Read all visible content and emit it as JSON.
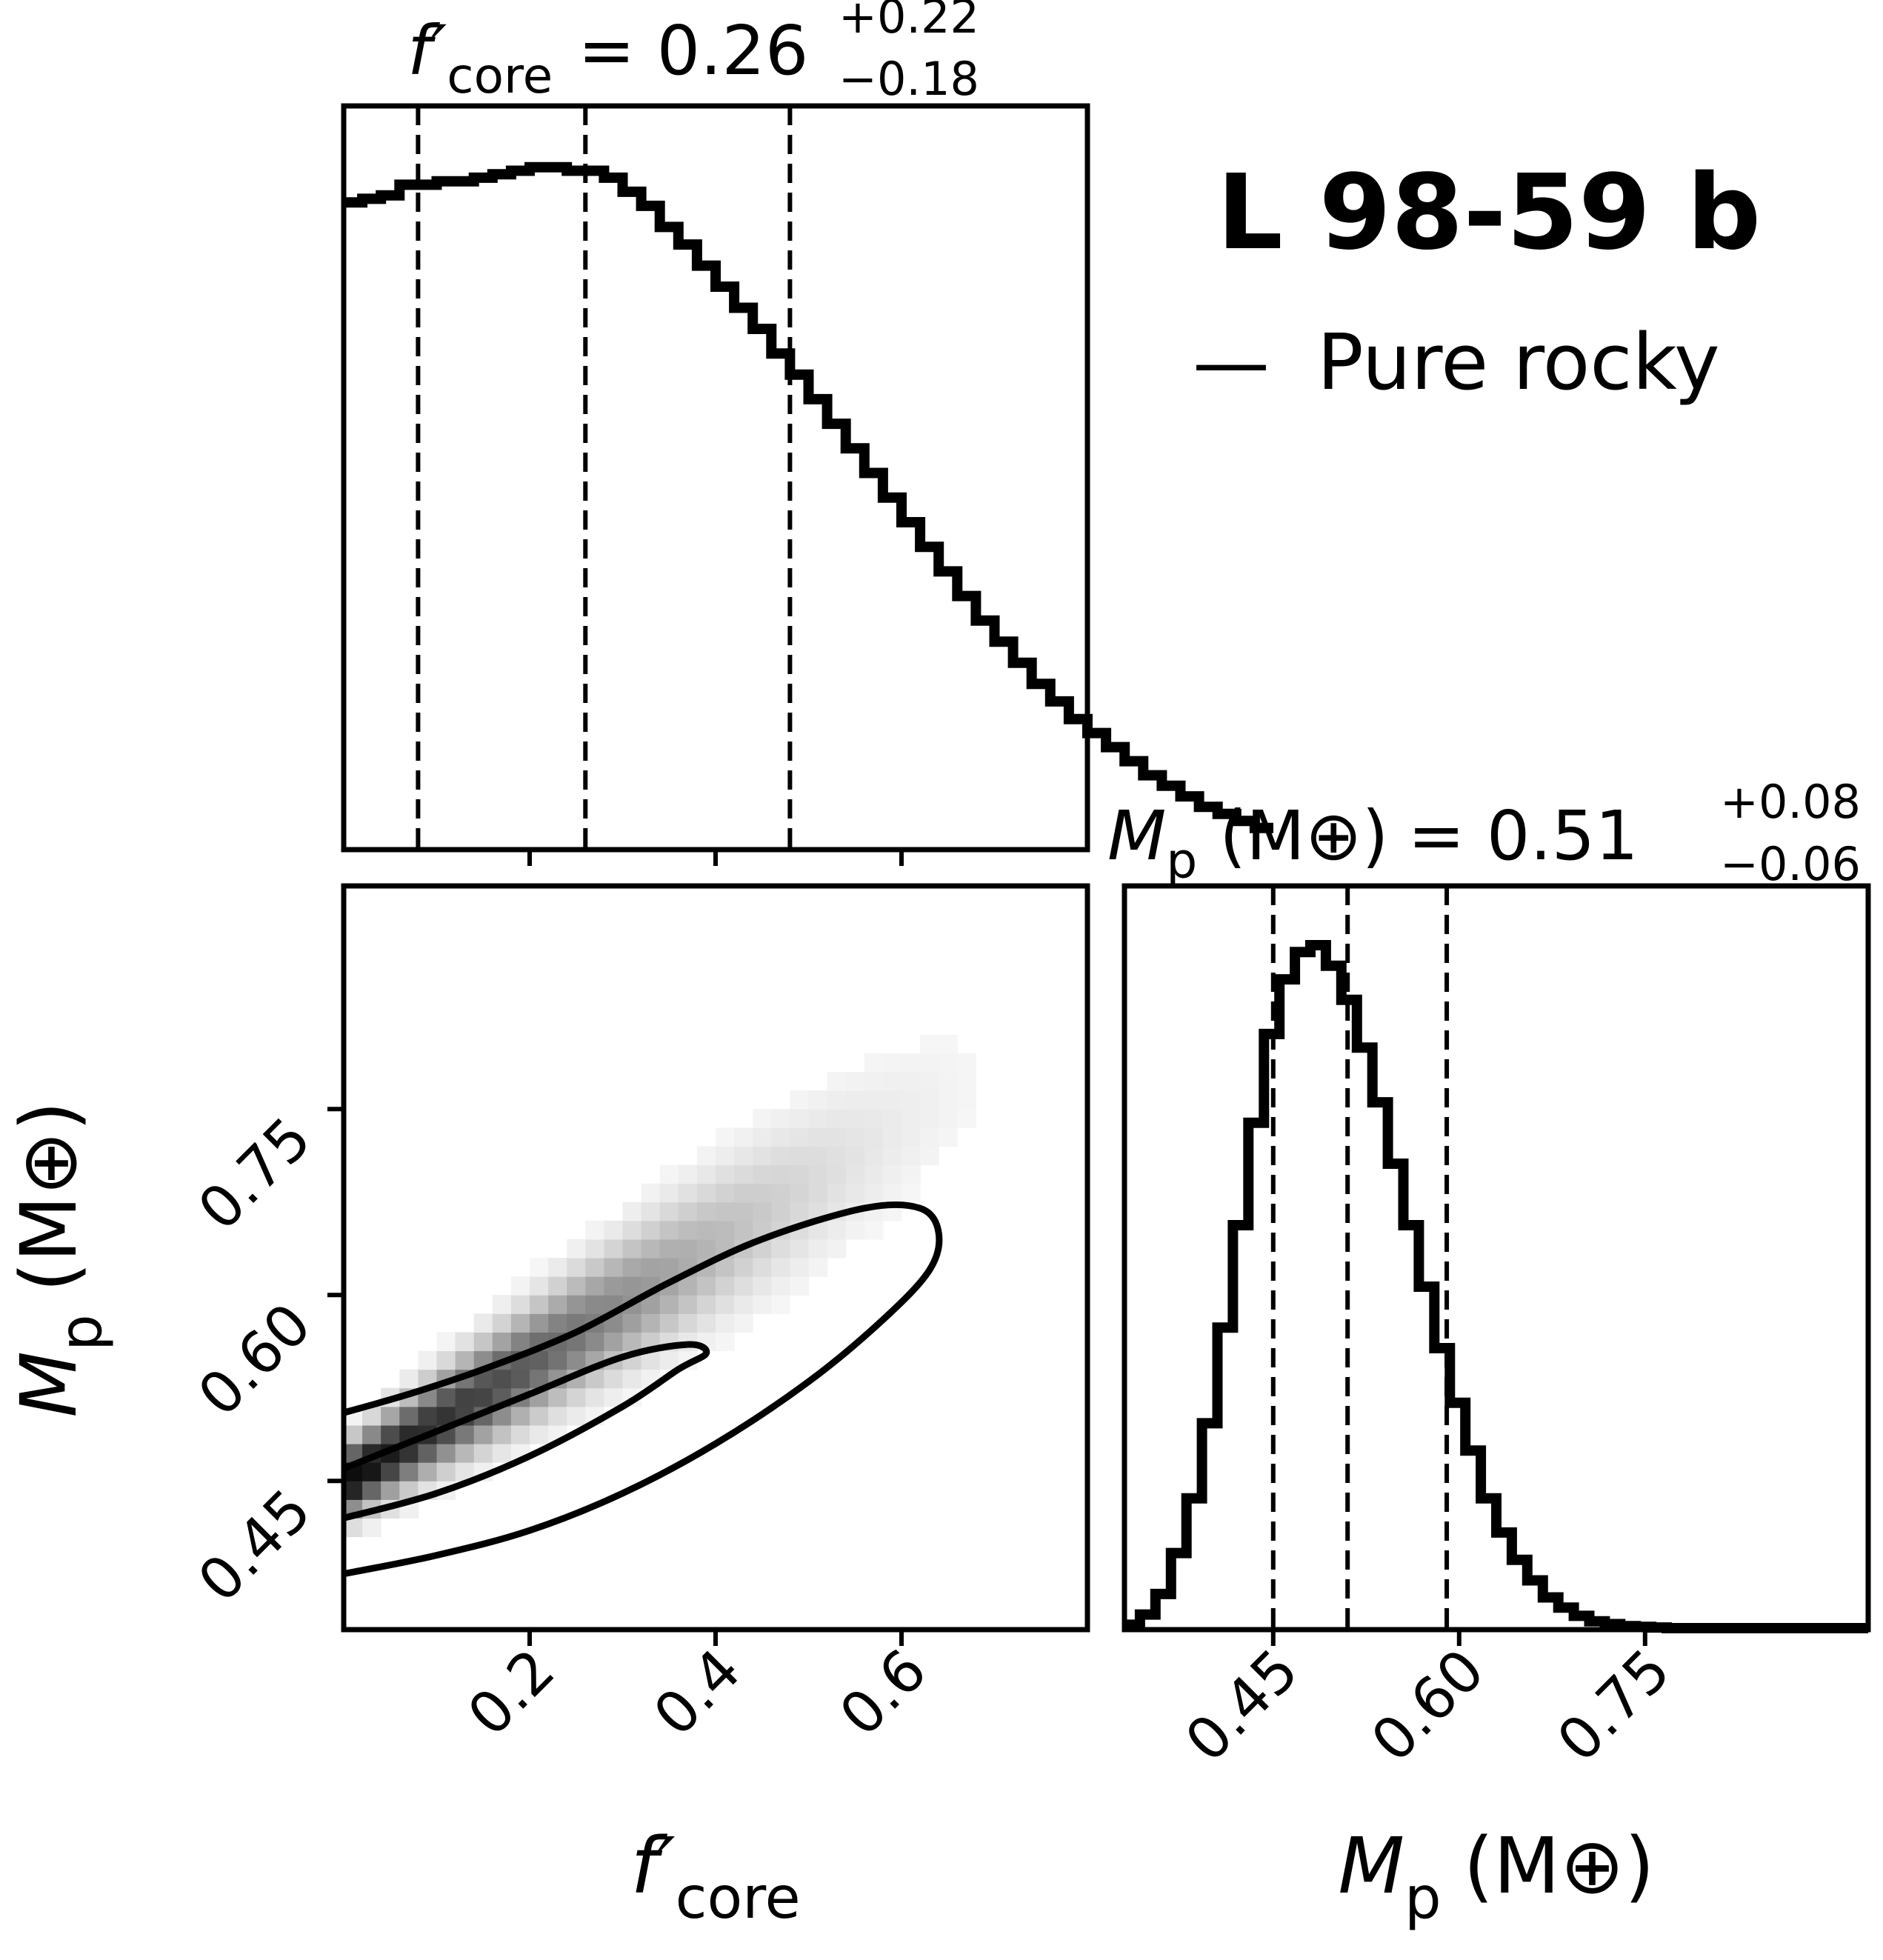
{
  "planet_label": "L 98-59 b",
  "legend": {
    "dash": "—",
    "label": "Pure rocky",
    "color": "#000000"
  },
  "chart_data": [
    {
      "type": "histogram",
      "panel": "f_core marginal",
      "title_symbol": "f′",
      "title_subscript": "core",
      "title_value": "= 0.26",
      "title_err_plus": "+0.22",
      "title_err_minus": "−0.18",
      "x_range": [
        0,
        0.8
      ],
      "quantile_lines": [
        0.08,
        0.26,
        0.48
      ],
      "bin_width": 0.02,
      "y_relative": [
        0.905,
        0.91,
        0.915,
        0.93,
        0.93,
        0.935,
        0.935,
        0.94,
        0.945,
        0.95,
        0.955,
        0.955,
        0.95,
        0.95,
        0.94,
        0.92,
        0.9,
        0.87,
        0.845,
        0.815,
        0.785,
        0.755,
        0.725,
        0.69,
        0.66,
        0.625,
        0.59,
        0.555,
        0.52,
        0.485,
        0.45,
        0.415,
        0.38,
        0.345,
        0.31,
        0.28,
        0.25,
        0.22,
        0.195,
        0.17,
        0.15,
        0.13,
        0.11,
        0.09,
        0.075,
        0.06,
        0.045,
        0.035,
        0.025,
        0.015
      ]
    },
    {
      "type": "histogram",
      "panel": "Mp marginal",
      "title_symbol": "M",
      "title_subscript": "p",
      "title_unit": "(M⊕)",
      "title_value": "= 0.51",
      "title_err_plus": "+0.08",
      "title_err_minus": "−0.06",
      "x_range": [
        0.33,
        0.93
      ],
      "xticks": [
        "0.45",
        "0.60",
        "0.75"
      ],
      "xtick_values": [
        0.45,
        0.6,
        0.75
      ],
      "xlabel_symbol": "M",
      "xlabel_subscript": "p",
      "xlabel_unit": "(M⊕)",
      "quantile_lines": [
        0.45,
        0.51,
        0.59
      ],
      "bin_width": 0.0125,
      "y_relative": [
        0.005,
        0.02,
        0.05,
        0.11,
        0.19,
        0.3,
        0.44,
        0.59,
        0.74,
        0.87,
        0.95,
        0.99,
        1.0,
        0.97,
        0.92,
        0.85,
        0.77,
        0.68,
        0.59,
        0.5,
        0.41,
        0.33,
        0.26,
        0.19,
        0.14,
        0.1,
        0.07,
        0.045,
        0.03,
        0.018,
        0.01,
        0.006,
        0.003,
        0.002,
        0.001,
        0.0,
        0.0,
        0.0,
        0.0,
        0.0,
        0.0,
        0.0,
        0.0,
        0.0,
        0.0,
        0.0,
        0.0,
        0.0
      ]
    },
    {
      "type": "heatmap",
      "panel": "f_core vs Mp joint",
      "x_range": [
        0,
        0.8
      ],
      "y_range": [
        0.33,
        0.93
      ],
      "xticks": [
        "0.2",
        "0.4",
        "0.6"
      ],
      "xtick_values": [
        0.2,
        0.4,
        0.6
      ],
      "yticks": [
        "0.45",
        "0.60",
        "0.75"
      ],
      "ytick_values": [
        0.45,
        0.6,
        0.75
      ],
      "xlabel_symbol": "f′",
      "xlabel_subscript": "core",
      "ylabel_symbol": "M",
      "ylabel_subscript": "p",
      "ylabel_unit": "(M⊕)",
      "relation": {
        "intercept": 0.448,
        "slope": 0.48
      },
      "inner_contour": [
        [
          0.0,
          0.42
        ],
        [
          0.1,
          0.44
        ],
        [
          0.2,
          0.47
        ],
        [
          0.3,
          0.51
        ],
        [
          0.36,
          0.54
        ],
        [
          0.39,
          0.553
        ],
        [
          0.37,
          0.56
        ],
        [
          0.3,
          0.55
        ],
        [
          0.2,
          0.52
        ],
        [
          0.1,
          0.49
        ],
        [
          0.0,
          0.46
        ]
      ],
      "outer_contour": [
        [
          0.0,
          0.375
        ],
        [
          0.1,
          0.39
        ],
        [
          0.2,
          0.41
        ],
        [
          0.3,
          0.44
        ],
        [
          0.4,
          0.48
        ],
        [
          0.5,
          0.53
        ],
        [
          0.58,
          0.58
        ],
        [
          0.63,
          0.62
        ],
        [
          0.64,
          0.65
        ],
        [
          0.62,
          0.67
        ],
        [
          0.56,
          0.67
        ],
        [
          0.45,
          0.645
        ],
        [
          0.35,
          0.61
        ],
        [
          0.25,
          0.57
        ],
        [
          0.15,
          0.54
        ],
        [
          0.07,
          0.52
        ],
        [
          0.0,
          0.505
        ]
      ]
    }
  ]
}
